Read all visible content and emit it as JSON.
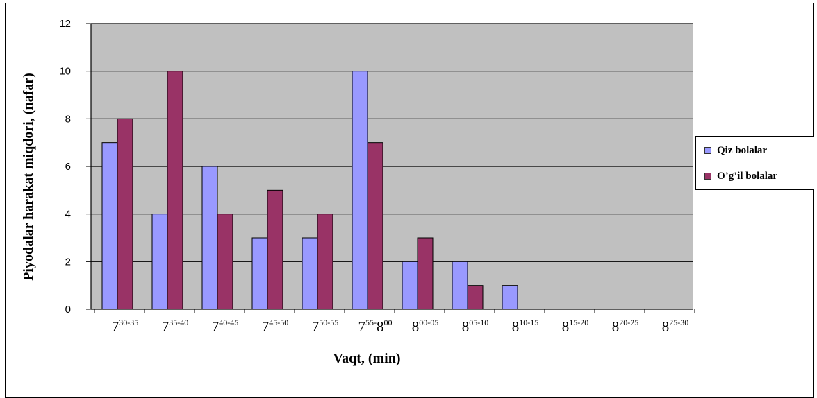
{
  "chart_data": {
    "type": "bar",
    "title": "",
    "xlabel": "Vaqt, (min)",
    "ylabel": "Piyodalar harakat miqdori, (nafar)",
    "ylim": [
      0,
      12
    ],
    "yticks": [
      "0",
      "2",
      "4",
      "6",
      "8",
      "10",
      "12"
    ],
    "grid": true,
    "legend_position": "right",
    "categories": [
      {
        "base": "7",
        "sup": "30-35"
      },
      {
        "base": "7",
        "sup": "35-40"
      },
      {
        "base": "7",
        "sup": "40-45"
      },
      {
        "base": "7",
        "sup": "45-50"
      },
      {
        "base": "7",
        "sup": "50-55"
      },
      {
        "base": "7",
        "sup": "55-",
        "base2": "8",
        "sup2": "00"
      },
      {
        "base": "8",
        "sup": "00-05"
      },
      {
        "base": "8",
        "sup": "05-10"
      },
      {
        "base": "8",
        "sup": "10-15"
      },
      {
        "base": "8",
        "sup": "15-20"
      },
      {
        "base": "8",
        "sup": "20-25"
      },
      {
        "base": "8",
        "sup": "25-30"
      }
    ],
    "series": [
      {
        "name": "Qiz bolalar",
        "color": "#9999ff",
        "values": [
          7,
          4,
          6,
          3,
          3,
          10,
          2,
          2,
          1,
          0,
          0,
          0
        ]
      },
      {
        "name": "O’g’il bolalar",
        "color": "#993366",
        "values": [
          8,
          10,
          4,
          5,
          4,
          7,
          3,
          1,
          0,
          0,
          0,
          0
        ]
      }
    ],
    "plot_background": "#c0c0c0"
  }
}
